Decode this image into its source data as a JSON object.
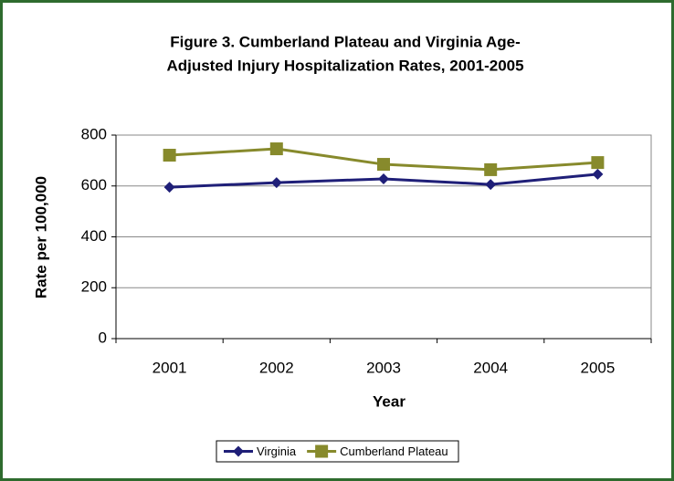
{
  "chart_data": {
    "type": "line",
    "title": [
      "Figure 3. Cumberland Plateau and Virginia Age-",
      "Adjusted Injury Hospitalization Rates, 2001-2005"
    ],
    "x_label": "Year",
    "y_label": "Rate per 100,000",
    "categories": [
      "2001",
      "2002",
      "2003",
      "2004",
      "2005"
    ],
    "series": [
      {
        "name": "Virginia",
        "color": "#1f1f78",
        "marker": "diamond",
        "values": [
          595,
          613,
          628,
          606,
          646
        ]
      },
      {
        "name": "Cumberland Plateau",
        "color": "#878a2c",
        "marker": "square",
        "values": [
          721,
          746,
          685,
          664,
          692
        ]
      }
    ],
    "ylim": [
      0,
      800
    ],
    "yticks": [
      0,
      200,
      400,
      600,
      800
    ],
    "grid": true,
    "legend": "bottom"
  }
}
